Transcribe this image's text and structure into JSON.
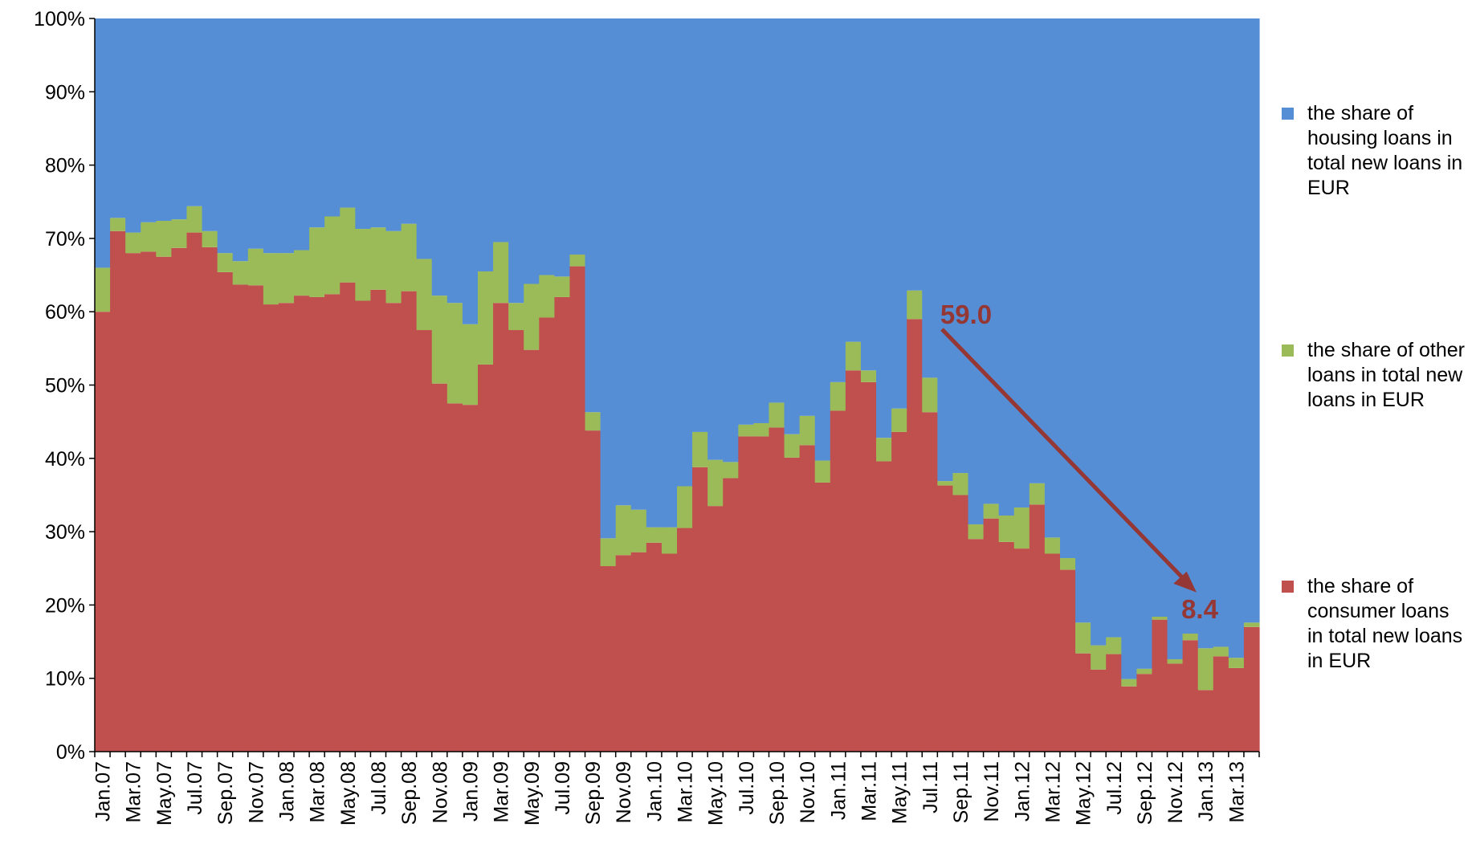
{
  "chart_data": {
    "type": "stacked-bar",
    "categories": [
      "Jan.07",
      null,
      "Mar.07",
      null,
      "May.07",
      null,
      "Jul.07",
      null,
      "Sep.07",
      null,
      "Nov.07",
      null,
      "Jan.08",
      null,
      "Mar.08",
      null,
      "May.08",
      null,
      "Jul.08",
      null,
      "Sep.08",
      null,
      "Nov.08",
      null,
      "Jan.09",
      null,
      "Mar.09",
      null,
      "May.09",
      null,
      "Jul.09",
      null,
      "Sep.09",
      null,
      "Nov.09",
      null,
      "Jan.10",
      null,
      "Mar.10",
      null,
      "May.10",
      null,
      "Jul.10",
      null,
      "Sep.10",
      null,
      "Nov.10",
      null,
      "Jan.11",
      null,
      "Mar.11",
      null,
      "May.11",
      null,
      "Jul.11",
      null,
      "Sep.11",
      null,
      "Nov.11",
      null,
      "Jan.12",
      null,
      "Mar.12",
      null,
      "May.12",
      null,
      "Jul.12",
      null,
      "Sep.12",
      null,
      "Nov.12",
      null,
      "Jan.13",
      null,
      "Mar.13",
      null
    ],
    "series": [
      {
        "name": "the share of consumer loans in total new loans in EUR",
        "color": "#c0504d",
        "values": [
          60,
          71,
          68,
          68.2,
          67.5,
          68.7,
          70.8,
          68.8,
          65.4,
          63.7,
          63.6,
          61,
          61.2,
          62.2,
          62,
          62.4,
          64,
          61.5,
          63,
          61.2,
          62.8,
          57.5,
          50.2,
          47.5,
          47.3,
          52.8,
          61.2,
          57.5,
          54.8,
          59.2,
          62,
          66.2,
          43.8,
          25.3,
          26.8,
          27.2,
          28.5,
          27,
          30.5,
          38.8,
          33.5,
          37.3,
          43,
          43,
          44.2,
          40.1,
          41.8,
          36.7,
          46.5,
          52,
          50.4,
          39.6,
          43.6,
          59,
          46.3,
          36.3,
          35,
          29,
          31.8,
          28.6,
          27.7,
          33.7,
          27,
          24.8,
          13.4,
          11.2,
          13.3,
          8.9,
          10.6,
          18,
          12,
          15.2,
          8.4,
          13,
          11.4,
          17
        ]
      },
      {
        "name": "the share of other loans in total new loans in EUR",
        "color": "#9bbb59",
        "values": [
          6.0,
          1.8,
          2.8,
          4.0,
          4.9,
          3.9,
          3.6,
          2.2,
          2.6,
          3.2,
          5.0,
          7.0,
          6.8,
          6.2,
          9.5,
          10.6,
          10.2,
          9.8,
          8.5,
          9.8,
          9.2,
          9.7,
          12.0,
          13.7,
          11.0,
          12.7,
          8.3,
          3.7,
          9.0,
          5.8,
          2.8,
          1.6,
          2.5,
          3.8,
          6.8,
          5.8,
          2.1,
          3.6,
          5.7,
          4.8,
          6.3,
          2.2,
          1.6,
          1.8,
          3.4,
          3.2,
          4.0,
          3.0,
          3.9,
          3.9,
          1.6,
          3.2,
          3.2,
          3.9,
          4.7,
          0.6,
          3.0,
          2.0,
          2.0,
          3.6,
          5.6,
          2.9,
          2.2,
          1.6,
          4.2,
          3.3,
          2.3,
          1.0,
          0.7,
          0.4,
          0.6,
          0.9,
          5.7,
          1.3,
          1.4,
          0.6
        ]
      },
      {
        "name": "the share of housing loans in total new loans in EUR",
        "color": "#558ed5",
        "values": [
          34.0,
          27.2,
          29.2,
          27.8,
          27.6,
          27.4,
          25.6,
          29.0,
          32.0,
          33.1,
          31.4,
          32.0,
          32.0,
          31.6,
          28.5,
          27.0,
          25.8,
          28.7,
          28.5,
          29.0,
          28.0,
          32.8,
          37.8,
          38.8,
          41.7,
          34.5,
          30.5,
          38.8,
          36.2,
          35.0,
          35.2,
          32.2,
          53.7,
          70.9,
          66.4,
          67.0,
          69.4,
          69.4,
          63.8,
          56.4,
          60.2,
          60.5,
          55.4,
          55.2,
          52.4,
          56.7,
          54.2,
          60.3,
          49.6,
          44.1,
          48.0,
          57.2,
          53.2,
          37.1,
          49.0,
          63.1,
          62.0,
          69.0,
          66.2,
          67.8,
          66.7,
          63.4,
          70.8,
          73.6,
          82.4,
          85.5,
          84.4,
          90.1,
          88.7,
          81.6,
          87.4,
          83.9,
          85.9,
          85.7,
          87.2,
          82.4
        ]
      }
    ],
    "ylim": [
      0,
      100
    ],
    "yticks": [
      {
        "value": 0,
        "label": "0%"
      },
      {
        "value": 10,
        "label": "10%"
      },
      {
        "value": 20,
        "label": "20%"
      },
      {
        "value": 30,
        "label": "30%"
      },
      {
        "value": 40,
        "label": "40%"
      },
      {
        "value": 50,
        "label": "50%"
      },
      {
        "value": 60,
        "label": "60%"
      },
      {
        "value": 70,
        "label": "70%"
      },
      {
        "value": 80,
        "label": "80%"
      },
      {
        "value": 90,
        "label": "90%"
      },
      {
        "value": 100,
        "label": "100%"
      }
    ],
    "legend": "right",
    "annotations": [
      {
        "text": "59.0",
        "color": "#953735"
      },
      {
        "text": "8.4",
        "color": "#953735"
      }
    ]
  }
}
